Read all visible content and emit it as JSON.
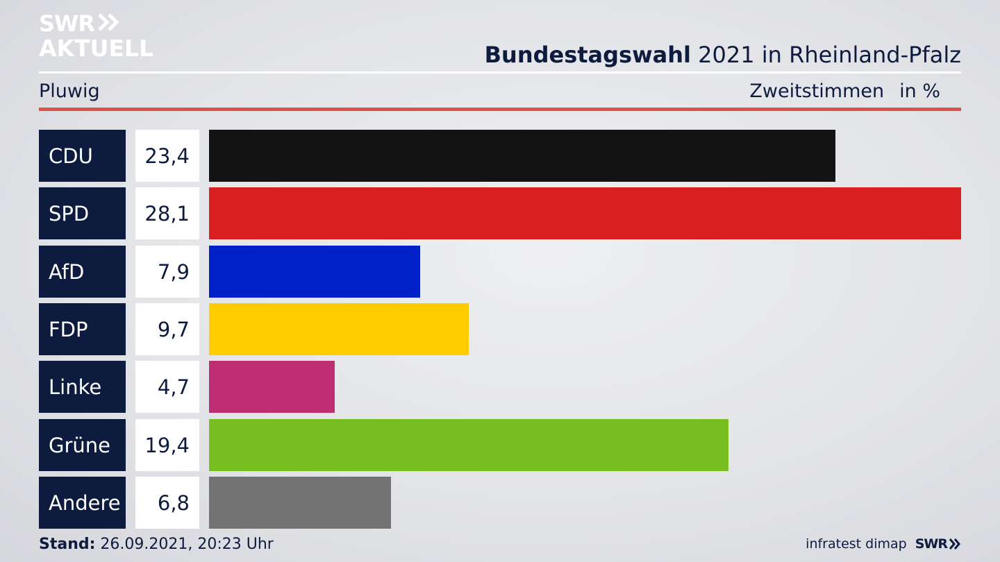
{
  "brand": {
    "line1": "SWR",
    "line2": "AKTUELL",
    "arrows_icon": "double-chevron-right-icon"
  },
  "header": {
    "title_bold": "Bundestagswahl",
    "title_rest": " 2021 in Rheinland-Pfalz",
    "region": "Pluwig",
    "measure": "Zweitstimmen",
    "unit": "in %"
  },
  "colors": {
    "label_bg": "#0d1b3e",
    "accent_rule": "#d9534a"
  },
  "chart_data": {
    "type": "bar",
    "orientation": "horizontal",
    "categories": [
      "CDU",
      "SPD",
      "AfD",
      "FDP",
      "Linke",
      "Grüne",
      "Andere"
    ],
    "values": [
      23.4,
      28.1,
      7.9,
      9.7,
      4.7,
      19.4,
      6.8
    ],
    "value_labels": [
      "23,4",
      "28,1",
      "7,9",
      "9,7",
      "4,7",
      "19,4",
      "6,8"
    ],
    "colors": [
      "#131313",
      "#d82020",
      "#0020c8",
      "#ffcc00",
      "#be2e72",
      "#78be20",
      "#737373"
    ],
    "title": "Bundestagswahl 2021 in Rheinland-Pfalz",
    "xlim": [
      0,
      28.1
    ]
  },
  "footer": {
    "stand_label": "Stand:",
    "stand_value": " 26.09.2021, 20:23 Uhr",
    "source": "infratest dimap",
    "logo": "SWR"
  }
}
